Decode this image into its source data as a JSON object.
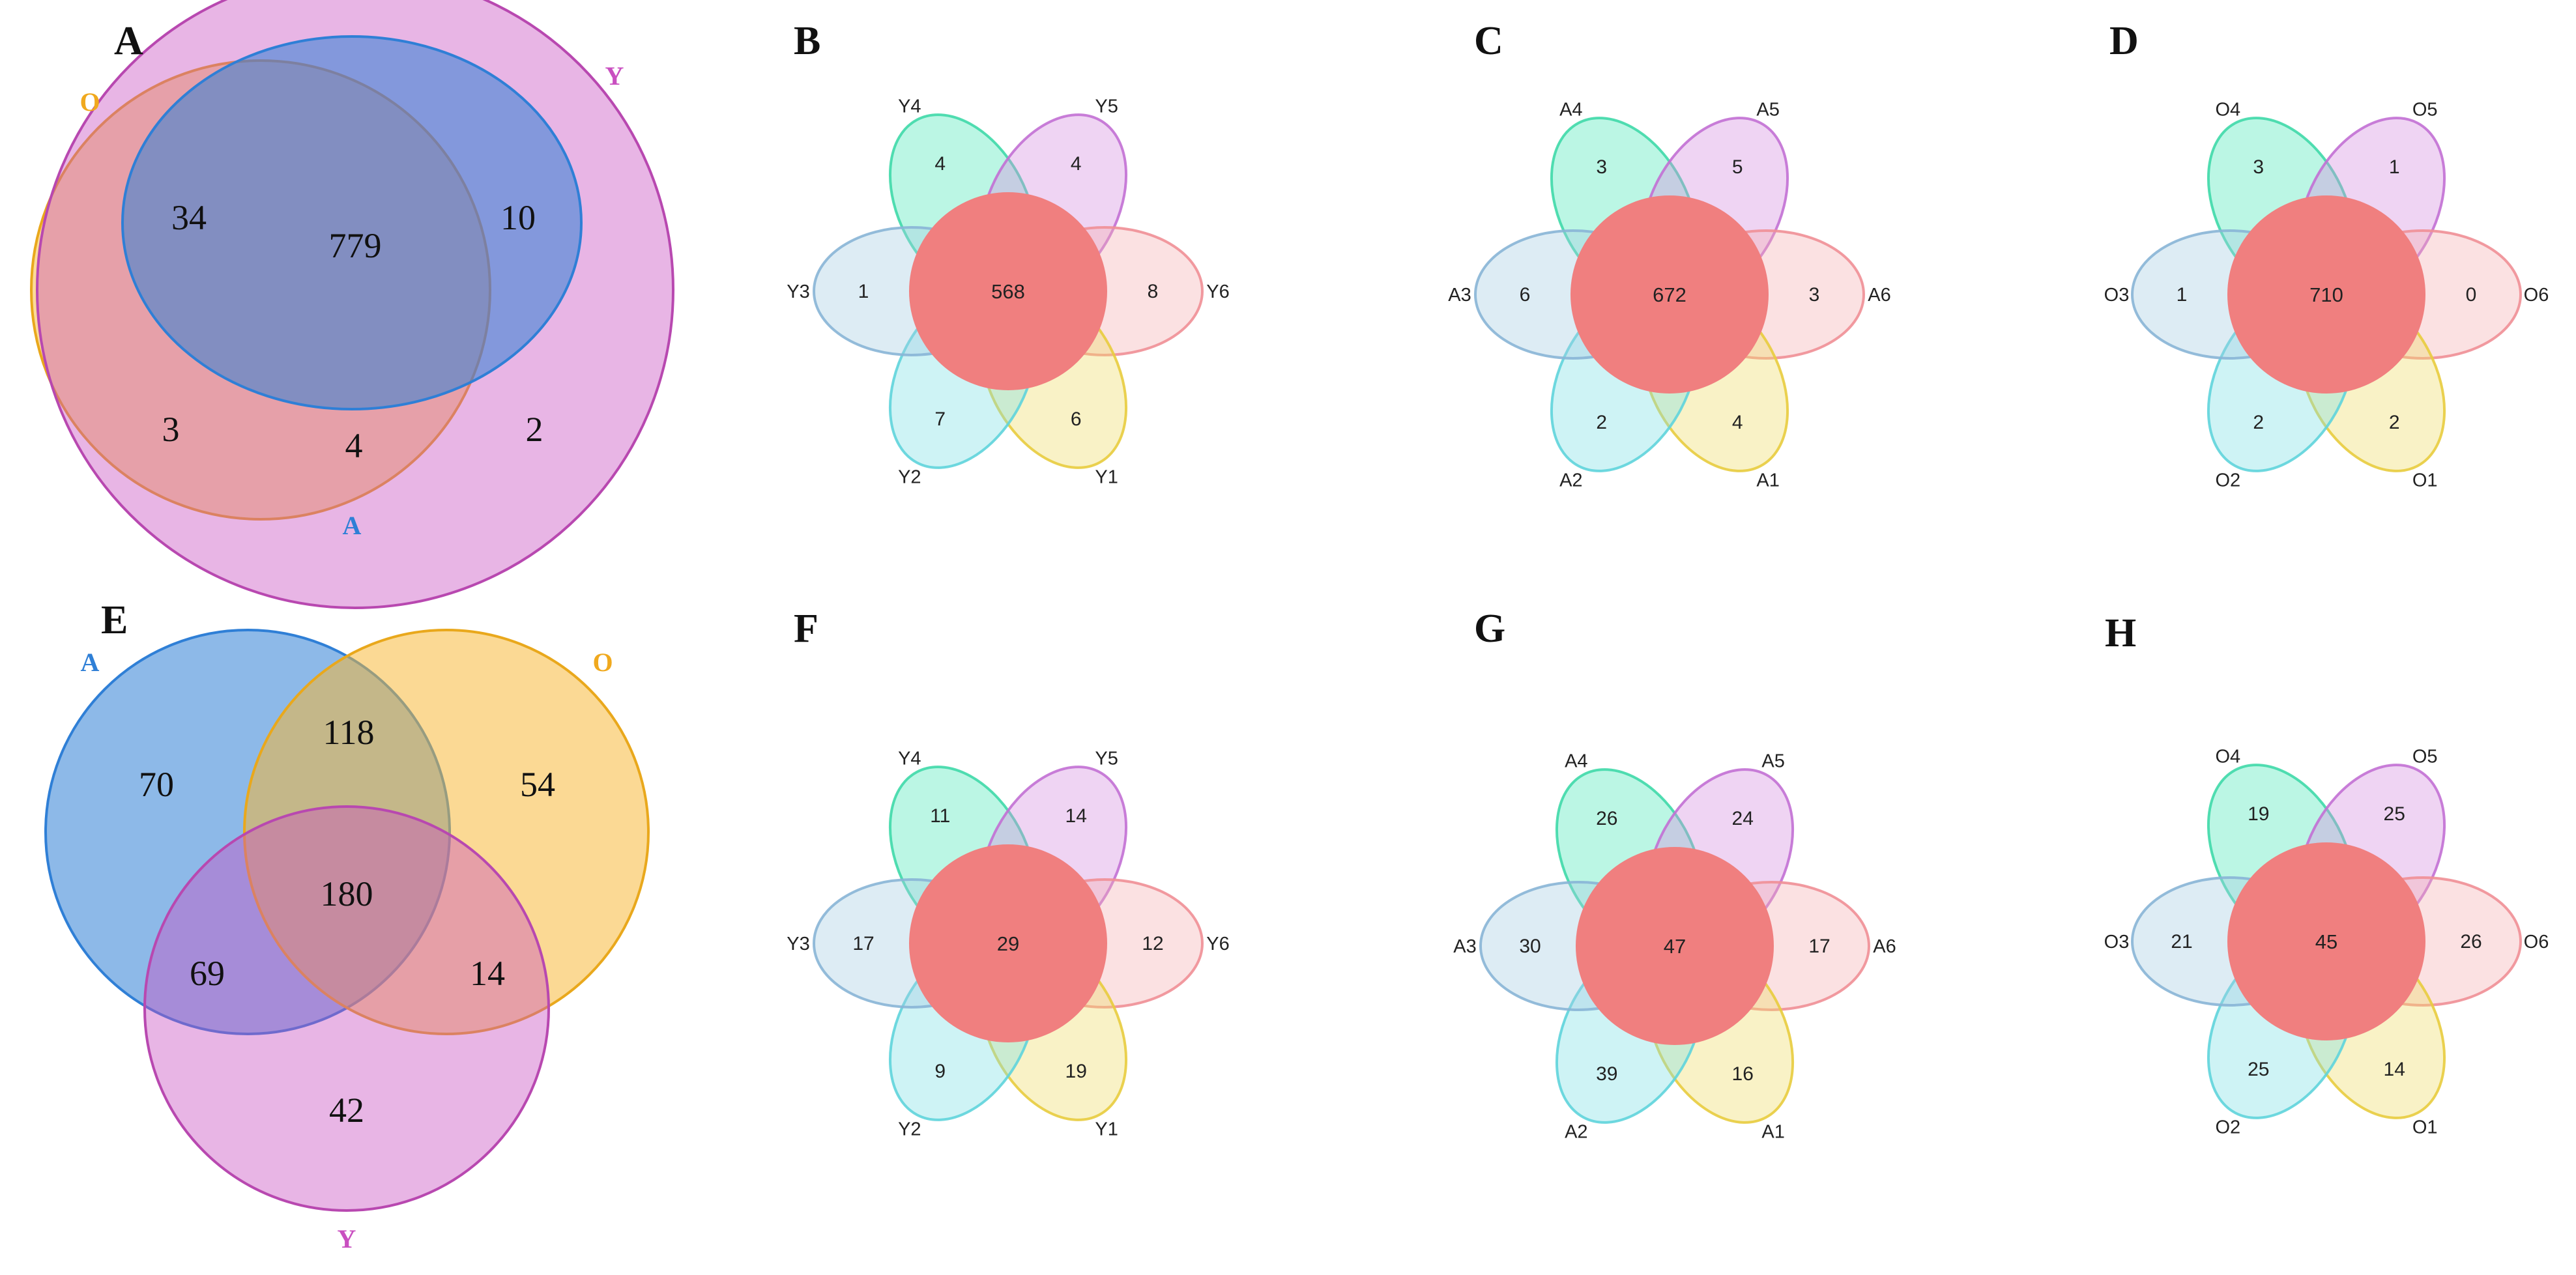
{
  "panels": {
    "A": {
      "letter": "A",
      "sets": {
        "O": {
          "label": "O",
          "color": "#f7b731"
        },
        "Y": {
          "label": "Y",
          "color": "#c94fc0"
        },
        "A": {
          "label": "A",
          "color": "#2f7fd6"
        }
      },
      "counts": {
        "only_O": "3",
        "only_Y": "2",
        "O_and_A": "34",
        "A_and_Y": "10",
        "O_and_Y": "4",
        "all": "779"
      }
    },
    "E": {
      "letter": "E",
      "sets": {
        "A": {
          "label": "A",
          "color": "#2f7fd6"
        },
        "O": {
          "label": "O",
          "color": "#f7b731"
        },
        "Y": {
          "label": "Y",
          "color": "#c94fc0"
        }
      },
      "counts": {
        "only_A": "70",
        "only_O": "54",
        "only_Y": "42",
        "A_and_O": "118",
        "A_and_Y": "69",
        "O_and_Y": "14",
        "all": "180"
      }
    },
    "flowers": [
      {
        "letter": "B",
        "core": "568",
        "petals": [
          {
            "label": "Y4",
            "count": "4"
          },
          {
            "label": "Y5",
            "count": "4"
          },
          {
            "label": "Y6",
            "count": "8"
          },
          {
            "label": "Y1",
            "count": "6"
          },
          {
            "label": "Y2",
            "count": "7"
          },
          {
            "label": "Y3",
            "count": "1"
          }
        ]
      },
      {
        "letter": "C",
        "core": "672",
        "petals": [
          {
            "label": "A4",
            "count": "3"
          },
          {
            "label": "A5",
            "count": "5"
          },
          {
            "label": "A6",
            "count": "3"
          },
          {
            "label": "A1",
            "count": "4"
          },
          {
            "label": "A2",
            "count": "2"
          },
          {
            "label": "A3",
            "count": "6"
          }
        ]
      },
      {
        "letter": "D",
        "core": "710",
        "petals": [
          {
            "label": "O4",
            "count": "3"
          },
          {
            "label": "O5",
            "count": "1"
          },
          {
            "label": "O6",
            "count": "0"
          },
          {
            "label": "O1",
            "count": "2"
          },
          {
            "label": "O2",
            "count": "2"
          },
          {
            "label": "O3",
            "count": "1"
          }
        ]
      },
      {
        "letter": "F",
        "core": "29",
        "petals": [
          {
            "label": "Y4",
            "count": "11"
          },
          {
            "label": "Y5",
            "count": "14"
          },
          {
            "label": "Y6",
            "count": "12"
          },
          {
            "label": "Y1",
            "count": "19"
          },
          {
            "label": "Y2",
            "count": "9"
          },
          {
            "label": "Y3",
            "count": "17"
          }
        ]
      },
      {
        "letter": "G",
        "core": "47",
        "petals": [
          {
            "label": "A4",
            "count": "26"
          },
          {
            "label": "A5",
            "count": "24"
          },
          {
            "label": "A6",
            "count": "17"
          },
          {
            "label": "A1",
            "count": "16"
          },
          {
            "label": "A2",
            "count": "39"
          },
          {
            "label": "A3",
            "count": "30"
          }
        ]
      },
      {
        "letter": "H",
        "core": "45",
        "petals": [
          {
            "label": "O4",
            "count": "19"
          },
          {
            "label": "O5",
            "count": "25"
          },
          {
            "label": "O6",
            "count": "26"
          },
          {
            "label": "O1",
            "count": "14"
          },
          {
            "label": "O2",
            "count": "25"
          },
          {
            "label": "O3",
            "count": "21"
          }
        ]
      }
    ]
  },
  "colors": {
    "petal_fills": [
      "#4de8b8",
      "#d58fe0",
      "#f5b0b3",
      "#f0dc6a",
      "#7ee0e6",
      "#a6cce2"
    ],
    "petal_strokes": [
      "#3fd9a9",
      "#c270d4",
      "#f08f96",
      "#e8cc3e",
      "#5fd4dc",
      "#88b5d6"
    ],
    "core": "#f07f7f"
  }
}
